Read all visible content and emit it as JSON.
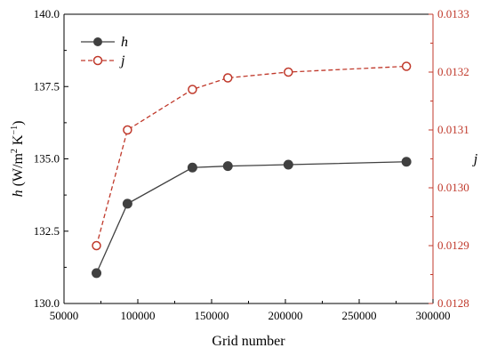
{
  "chart_data": {
    "type": "line",
    "xlabel": "Grid number",
    "ylabel_left": {
      "italic": "h",
      "rest": " (W/m",
      "sup1": "2",
      "mid": " K",
      "sup2": "−1",
      "end": ")"
    },
    "ylabel_right": "j",
    "xlim": [
      50000,
      300000
    ],
    "x_ticks": [
      50000,
      100000,
      150000,
      200000,
      250000,
      300000
    ],
    "x_tick_labels": [
      "50000",
      "100000",
      "150000",
      "200000",
      "250000",
      "300000"
    ],
    "ylim_left": [
      130.0,
      140.0
    ],
    "y_left_ticks": [
      130.0,
      132.5,
      135.0,
      137.5,
      140.0
    ],
    "y_left_tick_labels": [
      "130.0",
      "132.5",
      "135.0",
      "137.5",
      "140.0"
    ],
    "ylim_right": [
      0.0128,
      0.0133
    ],
    "y_right_ticks": [
      0.0128,
      0.0129,
      0.013,
      0.0131,
      0.0132,
      0.0133
    ],
    "y_right_tick_labels": [
      "0.0128",
      "0.0129",
      "0.0130",
      "0.0131",
      "0.0132",
      "0.0133"
    ],
    "x": [
      72000,
      93000,
      137000,
      161000,
      202000,
      282000
    ],
    "series": [
      {
        "name": "h",
        "axis": "left",
        "color": "#404040",
        "style": "solid",
        "marker": "filled-circle",
        "values": [
          131.05,
          133.45,
          134.7,
          134.75,
          134.8,
          134.9
        ]
      },
      {
        "name": "j",
        "axis": "right",
        "color": "#c0392b",
        "style": "dashed",
        "marker": "open-circle",
        "values": [
          0.0129,
          0.0131,
          0.01317,
          0.01319,
          0.0132,
          0.01321
        ]
      }
    ],
    "legend": "top-left",
    "grid": false
  },
  "colors": {
    "left_axis": "#000000",
    "right_axis": "#c0392b",
    "h_series": "#404040",
    "j_series": "#c0392b"
  }
}
